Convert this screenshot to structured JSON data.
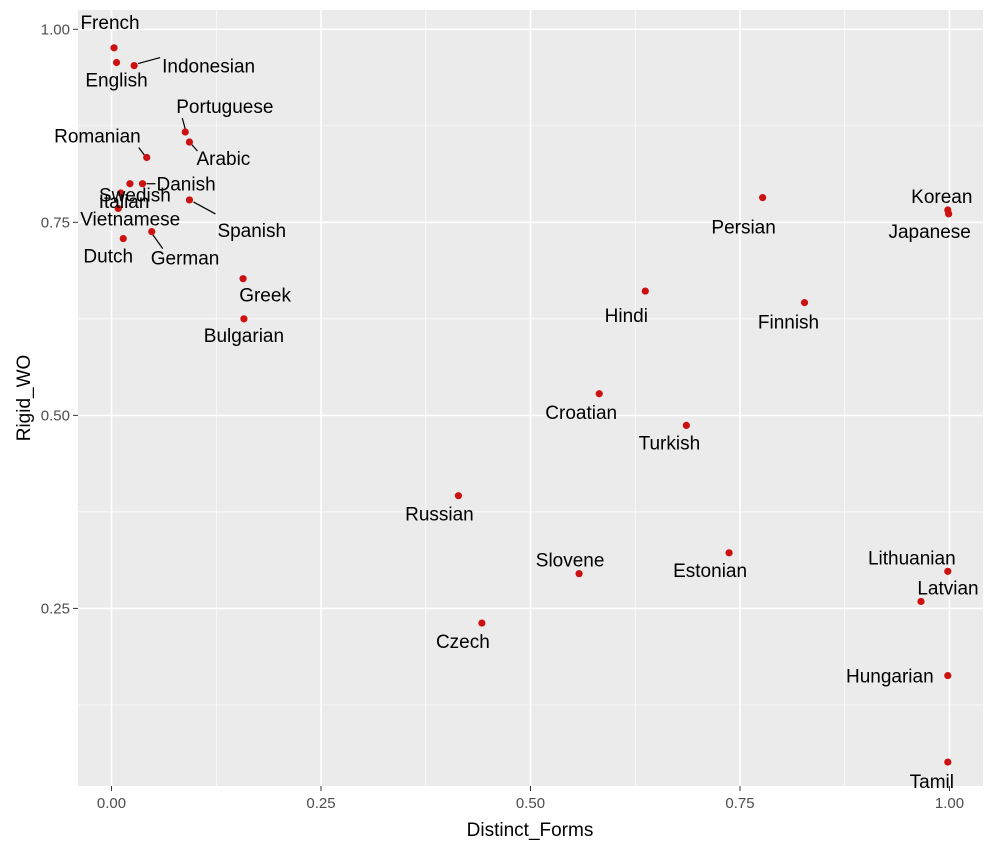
{
  "chart_data": {
    "type": "scatter",
    "xlabel": "Distinct_Forms",
    "ylabel": "Rigid_WO",
    "xlim": [
      -0.04,
      1.04
    ],
    "ylim": [
      0.02,
      1.025
    ],
    "x_ticks": [
      0.0,
      0.25,
      0.5,
      0.75,
      1.0
    ],
    "x_tick_labels": [
      "0.00",
      "0.25",
      "0.50",
      "0.75",
      "1.00"
    ],
    "y_ticks": [
      0.25,
      0.5,
      0.75,
      1.0
    ],
    "y_tick_labels": [
      "0.25",
      "0.50",
      "0.75",
      "1.00"
    ],
    "grid": true,
    "legend": "none",
    "colors": {
      "panel": "#ebebeb",
      "grid": "#ffffff",
      "point": "#cc1111"
    },
    "points": [
      {
        "label": "French",
        "x": 0.003,
        "y": 0.976
      },
      {
        "label": "English",
        "x": 0.006,
        "y": 0.957
      },
      {
        "label": "Indonesian",
        "x": 0.027,
        "y": 0.953
      },
      {
        "label": "Portuguese",
        "x": 0.088,
        "y": 0.867
      },
      {
        "label": "Arabic",
        "x": 0.093,
        "y": 0.854
      },
      {
        "label": "Romanian",
        "x": 0.042,
        "y": 0.834
      },
      {
        "label": "Swedish",
        "x": 0.022,
        "y": 0.8
      },
      {
        "label": "Danish",
        "x": 0.037,
        "y": 0.8
      },
      {
        "label": "Italian",
        "x": 0.011,
        "y": 0.788
      },
      {
        "label": "Spanish",
        "x": 0.093,
        "y": 0.779
      },
      {
        "label": "Vietnamese",
        "x": 0.008,
        "y": 0.768
      },
      {
        "label": "German",
        "x": 0.048,
        "y": 0.738
      },
      {
        "label": "Dutch",
        "x": 0.014,
        "y": 0.729
      },
      {
        "label": "Greek",
        "x": 0.157,
        "y": 0.677
      },
      {
        "label": "Bulgarian",
        "x": 0.158,
        "y": 0.625
      },
      {
        "label": "Persian",
        "x": 0.777,
        "y": 0.782
      },
      {
        "label": "Korean",
        "x": 0.998,
        "y": 0.766
      },
      {
        "label": "Japanese",
        "x": 0.999,
        "y": 0.761
      },
      {
        "label": "Hindi",
        "x": 0.637,
        "y": 0.661
      },
      {
        "label": "Finnish",
        "x": 0.827,
        "y": 0.646
      },
      {
        "label": "Croatian",
        "x": 0.582,
        "y": 0.528
      },
      {
        "label": "Turkish",
        "x": 0.686,
        "y": 0.487
      },
      {
        "label": "Russian",
        "x": 0.414,
        "y": 0.396
      },
      {
        "label": "Estonian",
        "x": 0.737,
        "y": 0.322
      },
      {
        "label": "Slovene",
        "x": 0.558,
        "y": 0.295
      },
      {
        "label": "Lithuanian",
        "x": 0.998,
        "y": 0.298
      },
      {
        "label": "Latvian",
        "x": 0.966,
        "y": 0.259
      },
      {
        "label": "Czech",
        "x": 0.442,
        "y": 0.231
      },
      {
        "label": "Hungarian",
        "x": 0.998,
        "y": 0.163
      },
      {
        "label": "Tamil",
        "x": 0.998,
        "y": 0.051
      }
    ]
  }
}
